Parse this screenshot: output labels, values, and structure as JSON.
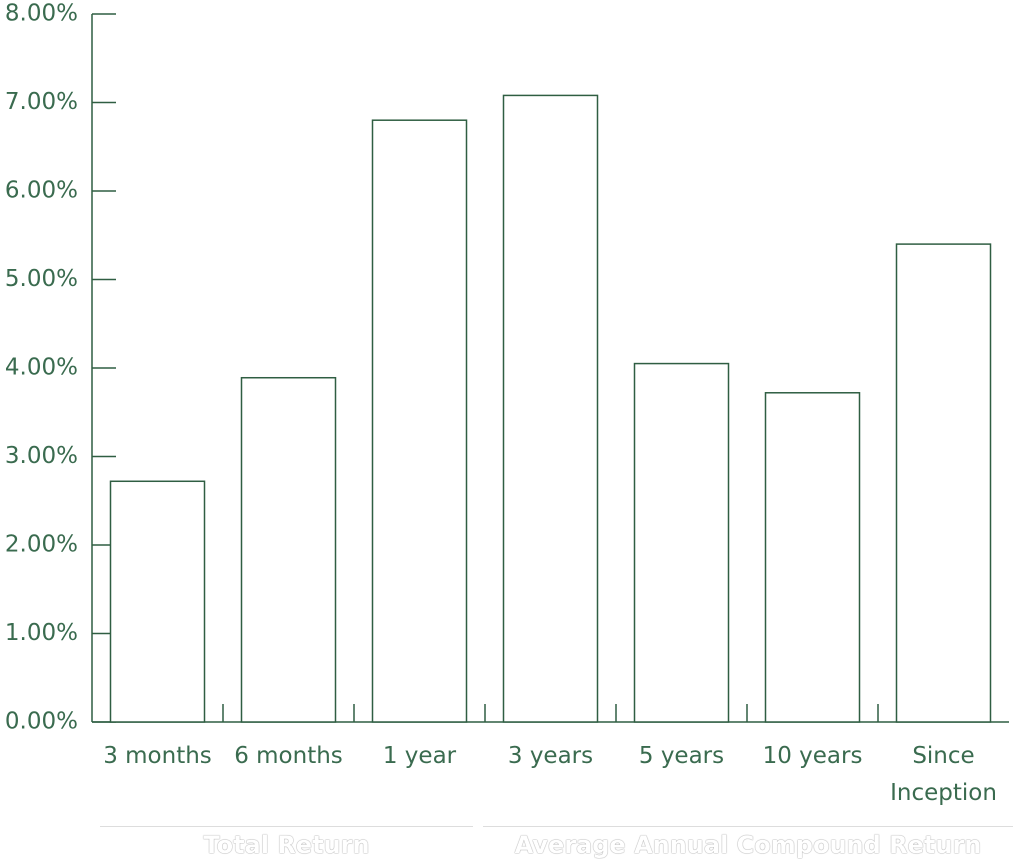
{
  "chart_data": {
    "type": "bar",
    "categories": [
      "3 months",
      "6 months",
      "1 year",
      "3 years",
      "5 years",
      "10 years",
      "Since Inception"
    ],
    "values": [
      2.72,
      3.89,
      6.8,
      7.08,
      4.05,
      3.72,
      5.4
    ],
    "color": "#2f5e42",
    "ylim": [
      0,
      8
    ],
    "yticks": [
      {
        "value": 0,
        "label": "0.00%"
      },
      {
        "value": 1,
        "label": "1.00%"
      },
      {
        "value": 2,
        "label": "2.00%"
      },
      {
        "value": 3,
        "label": "3.00%"
      },
      {
        "value": 4,
        "label": "4.00%"
      },
      {
        "value": 5,
        "label": "5.00%"
      },
      {
        "value": 6,
        "label": "6.00%"
      },
      {
        "value": 7,
        "label": "7.00%"
      },
      {
        "value": 8,
        "label": "8.00%"
      }
    ],
    "group_labels": [
      "Total Return",
      "Average Annual Compound Return"
    ]
  }
}
